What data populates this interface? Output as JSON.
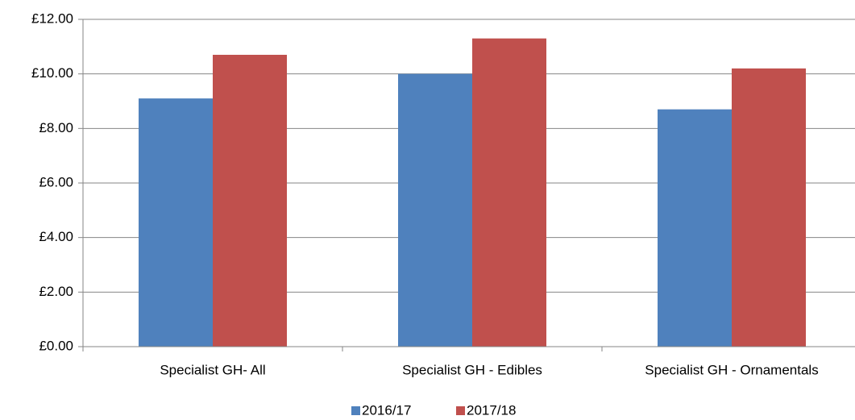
{
  "chart_data": {
    "type": "bar",
    "categories": [
      "Specialist GH- All",
      "Specialist GH - Edibles",
      "Specialist GH - Ornamentals"
    ],
    "series": [
      {
        "name": "2016/17",
        "color": "#4f81bd",
        "values": [
          9.1,
          10.0,
          8.7
        ]
      },
      {
        "name": "2017/18",
        "color": "#c0504d",
        "values": [
          10.7,
          11.3,
          10.2
        ]
      }
    ],
    "ylim": [
      0,
      12
    ],
    "yticks": [
      {
        "value": 0,
        "label": "£0.00"
      },
      {
        "value": 2,
        "label": "£2.00"
      },
      {
        "value": 4,
        "label": "£4.00"
      },
      {
        "value": 6,
        "label": "£6.00"
      },
      {
        "value": 8,
        "label": "£8.00"
      },
      {
        "value": 10,
        "label": "£10.00"
      },
      {
        "value": 12,
        "label": "£12.00"
      }
    ],
    "grid": true,
    "legend": "bottom"
  }
}
